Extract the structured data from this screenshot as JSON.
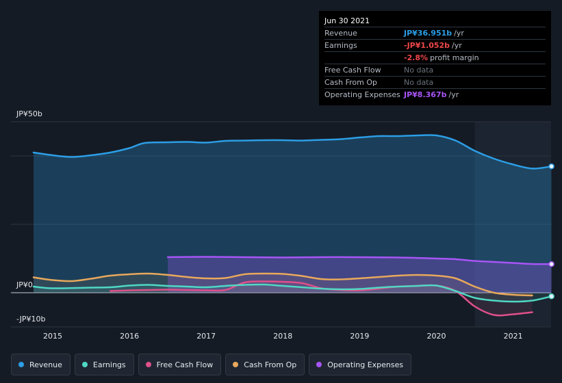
{
  "tooltip": {
    "date": "Jun 30 2021",
    "rows": [
      {
        "label": "Revenue",
        "value": "JP¥36.951b",
        "suffix": "/yr",
        "color": "#2c9ee6"
      },
      {
        "label": "Earnings",
        "value": "-JP¥1.052b",
        "suffix": "/yr",
        "color": "#f0474a"
      },
      {
        "label": "",
        "value": "-2.8%",
        "suffix": "profit margin",
        "color": "#f0474a"
      },
      {
        "label": "Free Cash Flow",
        "value": "No data",
        "suffix": "",
        "color": "#6b737e"
      },
      {
        "label": "Cash From Op",
        "value": "No data",
        "suffix": "",
        "color": "#6b737e"
      },
      {
        "label": "Operating Expenses",
        "value": "JP¥8.367b",
        "suffix": "/yr",
        "color": "#a855f7"
      }
    ]
  },
  "axis": {
    "top_label": "JP¥50b",
    "zero_label": "JP¥0",
    "bottom_label": "-JP¥10b"
  },
  "legend": [
    {
      "label": "Revenue",
      "color": "#2c9ee6"
    },
    {
      "label": "Earnings",
      "color": "#4fd8c4"
    },
    {
      "label": "Free Cash Flow",
      "color": "#e0508a"
    },
    {
      "label": "Cash From Op",
      "color": "#e8a95c"
    },
    {
      "label": "Operating Expenses",
      "color": "#a855f7"
    }
  ],
  "chart_data": {
    "type": "area",
    "x_ticks": [
      "2015",
      "2016",
      "2017",
      "2018",
      "2019",
      "2020",
      "2021"
    ],
    "y_unit": "JP¥ billions",
    "ylim": [
      -10,
      50
    ],
    "highlight_from": 2020.5,
    "series": [
      {
        "name": "Revenue",
        "color": "#2c9ee6",
        "points": [
          [
            2014.75,
            41.0
          ],
          [
            2015.0,
            40.2
          ],
          [
            2015.25,
            39.7
          ],
          [
            2015.5,
            40.2
          ],
          [
            2015.75,
            41.0
          ],
          [
            2016.0,
            42.3
          ],
          [
            2016.2,
            43.8
          ],
          [
            2016.5,
            44.0
          ],
          [
            2016.75,
            44.1
          ],
          [
            2017.0,
            43.9
          ],
          [
            2017.25,
            44.4
          ],
          [
            2017.5,
            44.5
          ],
          [
            2017.75,
            44.6
          ],
          [
            2018.0,
            44.6
          ],
          [
            2018.25,
            44.5
          ],
          [
            2018.5,
            44.7
          ],
          [
            2018.75,
            44.9
          ],
          [
            2019.0,
            45.4
          ],
          [
            2019.25,
            45.8
          ],
          [
            2019.5,
            45.8
          ],
          [
            2019.75,
            46.0
          ],
          [
            2020.0,
            46.0
          ],
          [
            2020.25,
            44.5
          ],
          [
            2020.5,
            41.5
          ],
          [
            2020.75,
            39.2
          ],
          [
            2021.0,
            37.5
          ],
          [
            2021.25,
            36.3
          ],
          [
            2021.5,
            36.95
          ]
        ]
      },
      {
        "name": "Earnings",
        "color": "#4fd8c4",
        "points": [
          [
            2014.75,
            1.8
          ],
          [
            2015.0,
            1.3
          ],
          [
            2015.5,
            1.5
          ],
          [
            2015.75,
            1.6
          ],
          [
            2016.0,
            2.1
          ],
          [
            2016.25,
            2.3
          ],
          [
            2016.5,
            2.0
          ],
          [
            2016.75,
            1.8
          ],
          [
            2017.0,
            1.6
          ],
          [
            2017.25,
            2.0
          ],
          [
            2017.5,
            2.3
          ],
          [
            2017.75,
            2.4
          ],
          [
            2018.0,
            2.0
          ],
          [
            2018.25,
            1.6
          ],
          [
            2018.5,
            1.2
          ],
          [
            2018.75,
            1.0
          ],
          [
            2019.0,
            1.1
          ],
          [
            2019.25,
            1.5
          ],
          [
            2019.5,
            1.8
          ],
          [
            2019.75,
            2.0
          ],
          [
            2020.0,
            2.1
          ],
          [
            2020.25,
            0.5
          ],
          [
            2020.5,
            -1.5
          ],
          [
            2020.75,
            -2.3
          ],
          [
            2021.0,
            -2.6
          ],
          [
            2021.25,
            -2.3
          ],
          [
            2021.5,
            -1.05
          ]
        ]
      },
      {
        "name": "Free Cash Flow",
        "color": "#e0508a",
        "points": [
          [
            2015.75,
            0.5
          ],
          [
            2016.0,
            0.7
          ],
          [
            2016.25,
            0.8
          ],
          [
            2016.5,
            0.9
          ],
          [
            2016.75,
            0.8
          ],
          [
            2017.0,
            0.7
          ],
          [
            2017.25,
            0.8
          ],
          [
            2017.5,
            3.0
          ],
          [
            2017.75,
            3.3
          ],
          [
            2018.0,
            3.2
          ],
          [
            2018.25,
            2.8
          ],
          [
            2018.5,
            1.3
          ],
          [
            2018.75,
            0.8
          ],
          [
            2019.0,
            0.7
          ],
          [
            2019.25,
            1.2
          ],
          [
            2019.5,
            1.8
          ],
          [
            2019.75,
            2.0
          ],
          [
            2020.0,
            2.1
          ],
          [
            2020.25,
            0.5
          ],
          [
            2020.5,
            -4.0
          ],
          [
            2020.75,
            -6.5
          ],
          [
            2021.0,
            -6.3
          ],
          [
            2021.25,
            -5.7
          ]
        ]
      },
      {
        "name": "Cash From Op",
        "color": "#e8a95c",
        "points": [
          [
            2014.75,
            4.5
          ],
          [
            2015.0,
            3.7
          ],
          [
            2015.25,
            3.4
          ],
          [
            2015.5,
            4.1
          ],
          [
            2015.75,
            5.0
          ],
          [
            2016.0,
            5.4
          ],
          [
            2016.25,
            5.6
          ],
          [
            2016.5,
            5.2
          ],
          [
            2016.75,
            4.6
          ],
          [
            2017.0,
            4.2
          ],
          [
            2017.25,
            4.3
          ],
          [
            2017.5,
            5.4
          ],
          [
            2017.75,
            5.6
          ],
          [
            2018.0,
            5.5
          ],
          [
            2018.25,
            4.9
          ],
          [
            2018.5,
            4.0
          ],
          [
            2018.75,
            3.9
          ],
          [
            2019.0,
            4.2
          ],
          [
            2019.25,
            4.6
          ],
          [
            2019.5,
            5.0
          ],
          [
            2019.75,
            5.2
          ],
          [
            2020.0,
            5.0
          ],
          [
            2020.25,
            4.2
          ],
          [
            2020.5,
            1.8
          ],
          [
            2020.75,
            0.0
          ],
          [
            2021.0,
            -0.6
          ],
          [
            2021.25,
            -0.8
          ]
        ]
      },
      {
        "name": "Operating Expenses",
        "color": "#a855f7",
        "points": [
          [
            2016.5,
            10.4
          ],
          [
            2017.0,
            10.5
          ],
          [
            2017.5,
            10.4
          ],
          [
            2018.0,
            10.3
          ],
          [
            2018.5,
            10.4
          ],
          [
            2019.0,
            10.4
          ],
          [
            2019.5,
            10.3
          ],
          [
            2020.0,
            10.0
          ],
          [
            2020.25,
            9.8
          ],
          [
            2020.5,
            9.3
          ],
          [
            2020.75,
            9.0
          ],
          [
            2021.0,
            8.7
          ],
          [
            2021.25,
            8.4
          ],
          [
            2021.5,
            8.37
          ]
        ]
      }
    ]
  }
}
